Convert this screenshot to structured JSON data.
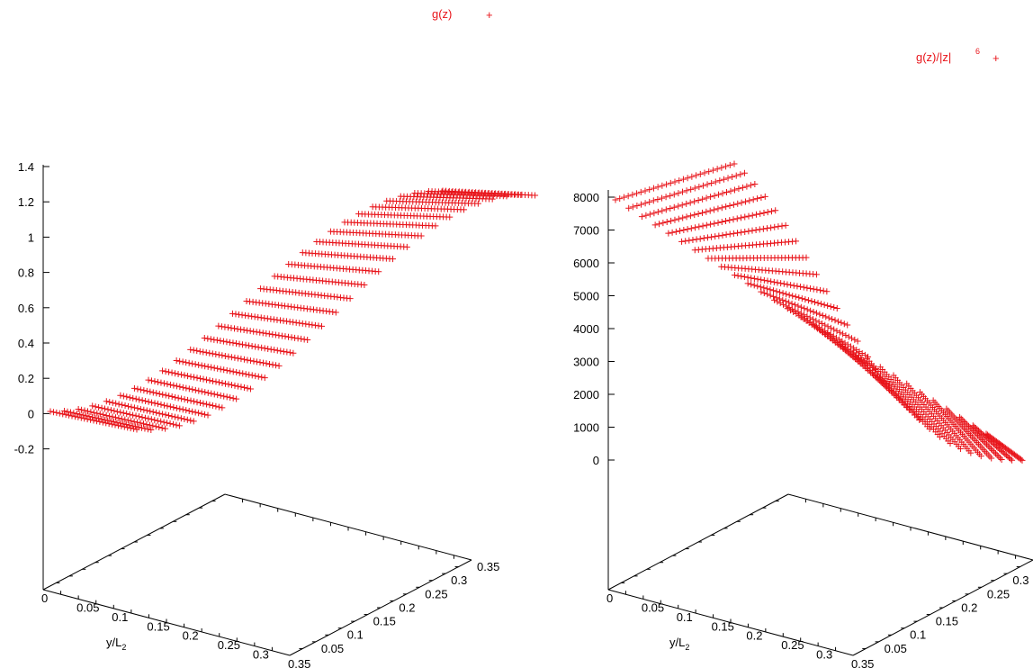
{
  "colors": {
    "series": "#e8141a",
    "axis": "#000000",
    "background": "#ffffff"
  },
  "chart_data": [
    {
      "type": "surface",
      "legend": {
        "label": "g(z)",
        "marker": "+",
        "placement": "top"
      },
      "zticks": [
        "1.4",
        "1.2",
        "1",
        "0.8",
        "0.6",
        "0.4",
        "0.2",
        "0",
        "-0.2"
      ],
      "zlim": [
        -0.2,
        1.4
      ],
      "x_ticks": [
        "0",
        "0.05",
        "0.1",
        "0.15",
        "0.2",
        "0.25",
        "0.3",
        "0.35"
      ],
      "y_ticks": [
        "0.05",
        "0.1",
        "0.15",
        "0.2",
        "0.25",
        "0.3",
        "0.35"
      ],
      "ylabel": "y/L",
      "ylabel_sub": "2",
      "xlim": [
        0,
        0.35
      ],
      "ylim": [
        0,
        0.35
      ],
      "grid": false
    },
    {
      "type": "surface",
      "legend": {
        "label": "g(z)/|z|",
        "label_sup": "6",
        "marker": "+",
        "placement": "top-right"
      },
      "zticks": [
        "8000",
        "7000",
        "6000",
        "5000",
        "4000",
        "3000",
        "2000",
        "1000",
        "0"
      ],
      "zlim": [
        0,
        8000
      ],
      "x_ticks": [
        "0",
        "0.05",
        "0.1",
        "0.15",
        "0.2",
        "0.25",
        "0.3",
        "0.35"
      ],
      "y_ticks": [
        "0.05",
        "0.1",
        "0.15",
        "0.2",
        "0.25",
        "0.3",
        "0.35"
      ],
      "ylabel": "y/L",
      "ylabel_sub": "2",
      "xlim": [
        0,
        0.35
      ],
      "ylim": [
        0,
        0.35
      ],
      "grid": false
    }
  ]
}
